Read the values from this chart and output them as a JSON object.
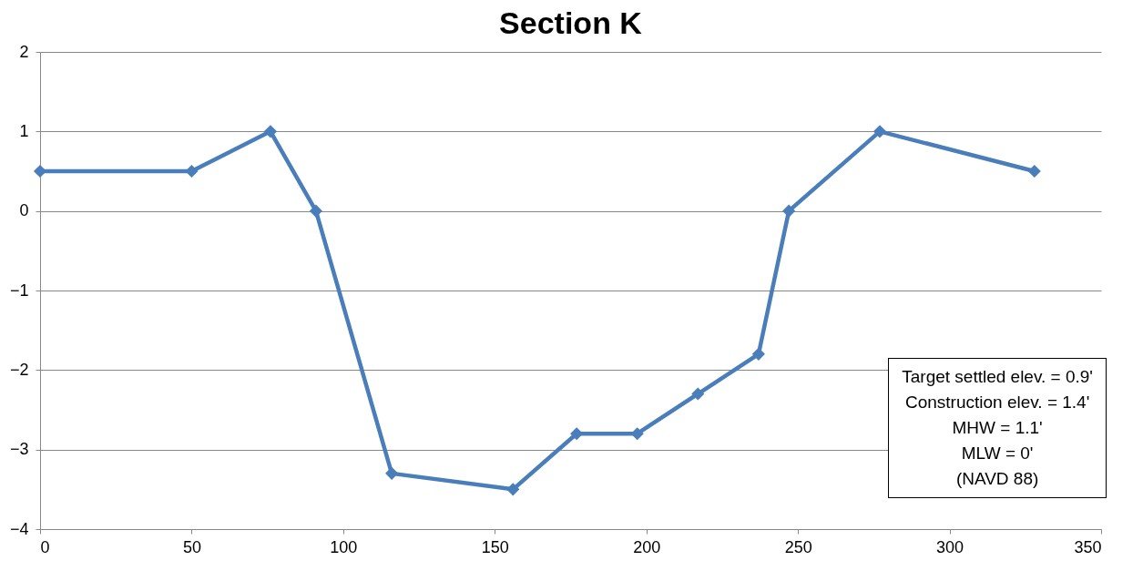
{
  "chart_data": {
    "type": "line",
    "title": "Section K",
    "x": [
      0,
      50,
      76,
      91,
      116,
      156,
      177,
      197,
      217,
      237,
      247,
      277,
      328
    ],
    "series": [
      {
        "color": "#4a7ebb",
        "values": [
          0.5,
          0.5,
          1,
          0,
          -3.3,
          -3.5,
          -2.8,
          -2.8,
          -2.3,
          -1.8,
          0,
          1,
          0.5
        ]
      }
    ],
    "xlim": [
      0,
      350
    ],
    "xticks": [
      0,
      50,
      100,
      150,
      200,
      250,
      300,
      350
    ],
    "ylim": [
      -4,
      2
    ],
    "yticks": [
      -4,
      -3,
      -2,
      -1,
      0,
      1,
      2
    ],
    "grid": "y",
    "marker": "diamond",
    "line_style": "solid",
    "annotations": [
      "Target settled elev. = 0.9'",
      "Construction elev. = 1.4'",
      "MHW = 1.1'",
      "MLW = 0'",
      "(NAVD 88)"
    ]
  }
}
